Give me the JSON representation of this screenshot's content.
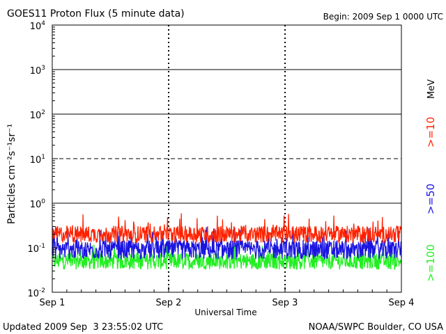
{
  "header": {
    "title": "GOES11 Proton Flux (5 minute data)",
    "begin": "Begin: 2009 Sep 1 0000 UTC"
  },
  "footer": {
    "updated": "Updated 2009 Sep  3 23:55:02 UTC",
    "source": "NOAA/SWPC Boulder, CO USA"
  },
  "chart_data": {
    "type": "line",
    "title": "GOES11 Proton Flux (5 minute data)",
    "xlabel": "Universal Time",
    "ylabel": "Particles cm⁻²s⁻¹sr⁻¹",
    "y_scale": "log",
    "ylim": [
      0.01,
      10000
    ],
    "xlim": [
      "2009-09-01T00:00Z",
      "2009-09-04T00:00Z"
    ],
    "x_ticks": [
      "Sep 1",
      "Sep 2",
      "Sep 3",
      "Sep 4"
    ],
    "y_ticks": [
      {
        "base": "10",
        "exp": "-2"
      },
      {
        "base": "10",
        "exp": "-1"
      },
      {
        "base": "10",
        "exp": "0"
      },
      {
        "base": "10",
        "exp": "1"
      },
      {
        "base": "10",
        "exp": "2"
      },
      {
        "base": "10",
        "exp": "3"
      },
      {
        "base": "10",
        "exp": "4"
      }
    ],
    "reference_lines": [
      {
        "value": 1,
        "style": "solid"
      },
      {
        "value": 10,
        "style": "dashed"
      },
      {
        "value": 100,
        "style": "solid"
      },
      {
        "value": 1000,
        "style": "solid"
      }
    ],
    "energy_unit": "MeV",
    "grid": "dashed vertical at day boundaries",
    "series": [
      {
        "name": ">=10",
        "color": "#ff2200",
        "typical": 0.2,
        "range": [
          0.12,
          0.6
        ]
      },
      {
        "name": ">=50",
        "color": "#1a14e0",
        "typical": 0.09,
        "range": [
          0.05,
          0.3
        ]
      },
      {
        "name": ">=100",
        "color": "#22ee22",
        "typical": 0.05,
        "range": [
          0.025,
          0.12
        ]
      }
    ]
  }
}
